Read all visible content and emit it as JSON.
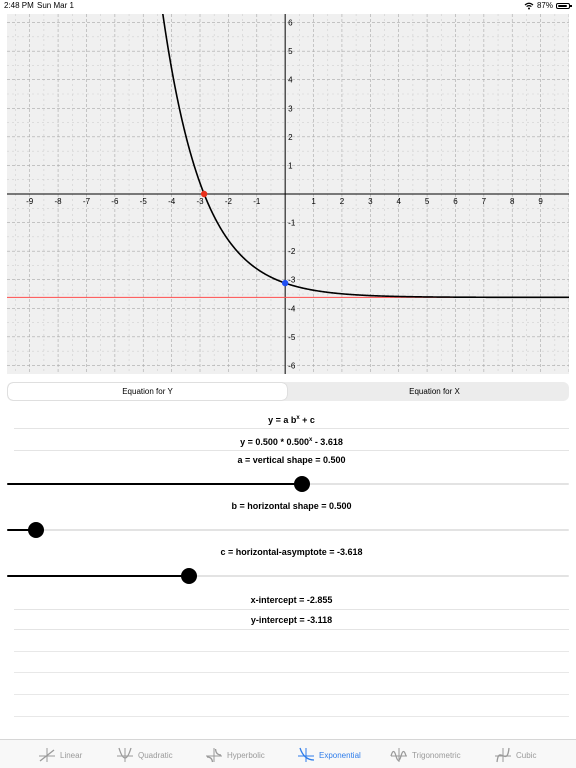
{
  "status_bar": {
    "time": "2:48 PM",
    "date": "Sun Mar 1",
    "battery": "87%"
  },
  "segmented": {
    "options": [
      "Equation for Y",
      "Equation for X"
    ],
    "selected": 0
  },
  "equation": {
    "general_base": "y = a b",
    "general_exp": "x",
    "general_tail": " + c",
    "current_base": "y = 0.500 * 0.500",
    "current_exp": "x",
    "current_tail": " - 3.618"
  },
  "sliders": {
    "a": {
      "label": "a = vertical shape = 0.500",
      "fraction": 0.525
    },
    "b": {
      "label": "b = horizontal shape = 0.500",
      "fraction": 0.052
    },
    "c": {
      "label": "c = horizontal-asymptote = -3.618",
      "fraction": 0.324
    }
  },
  "results": {
    "x_intercept": "x-intercept = -2.855",
    "y_intercept": "y-intercept = -3.118"
  },
  "tabs": [
    "Linear",
    "Quadratic",
    "Hyperbolic",
    "Exponential",
    "Trigonometric",
    "Cubic"
  ],
  "active_tab": "Exponential",
  "colors": {
    "accent": "#2f7dea",
    "asymptote": "#ff4d4d",
    "x_intercept_point": "#e8301c",
    "y_intercept_point": "#1f4ff2",
    "curve": "#000000"
  },
  "chart_data": {
    "type": "line",
    "function": {
      "a": 0.5,
      "b": 0.5,
      "c": -3.618
    },
    "x_ticks": [
      -9,
      -8,
      -7,
      -6,
      -5,
      -4,
      -3,
      -2,
      -1,
      1,
      2,
      3,
      4,
      5,
      6,
      7,
      8,
      9
    ],
    "y_ticks": [
      -6,
      -5,
      -4,
      -3,
      -2,
      -1,
      1,
      2,
      3,
      4,
      5,
      6
    ],
    "xlim": [
      -9.8,
      10.0
    ],
    "ylim": [
      -6.3,
      6.3
    ],
    "asymptote_y": -3.618,
    "points": [
      {
        "name": "x-intercept",
        "x": -2.855,
        "y": 0
      },
      {
        "name": "y-intercept",
        "x": 0,
        "y": -3.118
      }
    ],
    "grid": true
  }
}
